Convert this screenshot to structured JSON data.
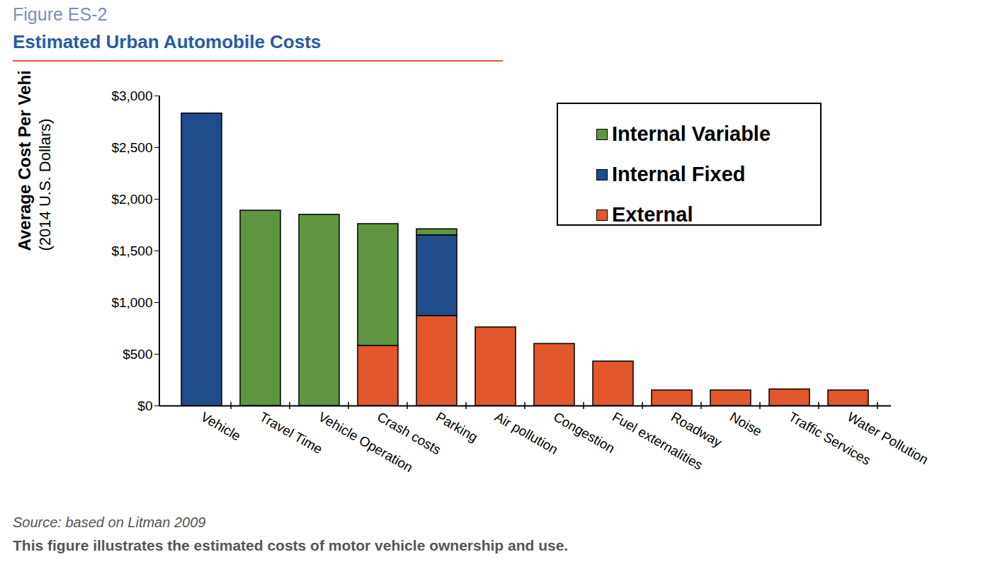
{
  "chart_data": {
    "type": "bar",
    "figure_number": "Figure ES-2",
    "title": "Estimated Urban Automobile Costs",
    "ylabel": "Average Cost Per Vehicle-Year",
    "ylabel_units": "(2014 U.S. Dollars)",
    "source": "Source: based on Litman 2009",
    "caption": "This figure illustrates the estimated costs of motor vehicle ownership and use.",
    "stacked": true,
    "legend": "upper right",
    "grid": false,
    "categories": [
      "Vehicle",
      "Travel Time",
      "Vehicle Operation",
      "Crash costs",
      "Parking",
      "Air pollution",
      "Congestion",
      "Fuel externalities",
      "Roadway",
      "Noise",
      "Traffic Services",
      "Water Pollution"
    ],
    "series": [
      {
        "name": "Internal Variable",
        "color": "#5e9640",
        "values": [
          0,
          1890,
          1850,
          1180,
          60,
          0,
          0,
          0,
          0,
          0,
          0,
          0
        ]
      },
      {
        "name": "Internal Fixed",
        "color": "#1f4c8a",
        "values": [
          2830,
          0,
          0,
          0,
          780,
          0,
          0,
          0,
          0,
          0,
          0,
          0
        ]
      },
      {
        "name": "External",
        "color": "#e2572b",
        "values": [
          0,
          0,
          0,
          580,
          870,
          760,
          600,
          430,
          150,
          150,
          160,
          150
        ]
      }
    ],
    "ylim": [
      0,
      3000
    ],
    "yticks": [
      {
        "value": 0,
        "label": "$0"
      },
      {
        "value": 500,
        "label": "$500"
      },
      {
        "value": 1000,
        "label": "$1,000"
      },
      {
        "value": 1500,
        "label": "$1,500"
      },
      {
        "value": 2000,
        "label": "$2,000"
      },
      {
        "value": 2500,
        "label": "$2,500"
      },
      {
        "value": 3000,
        "label": "$3,000"
      }
    ]
  }
}
